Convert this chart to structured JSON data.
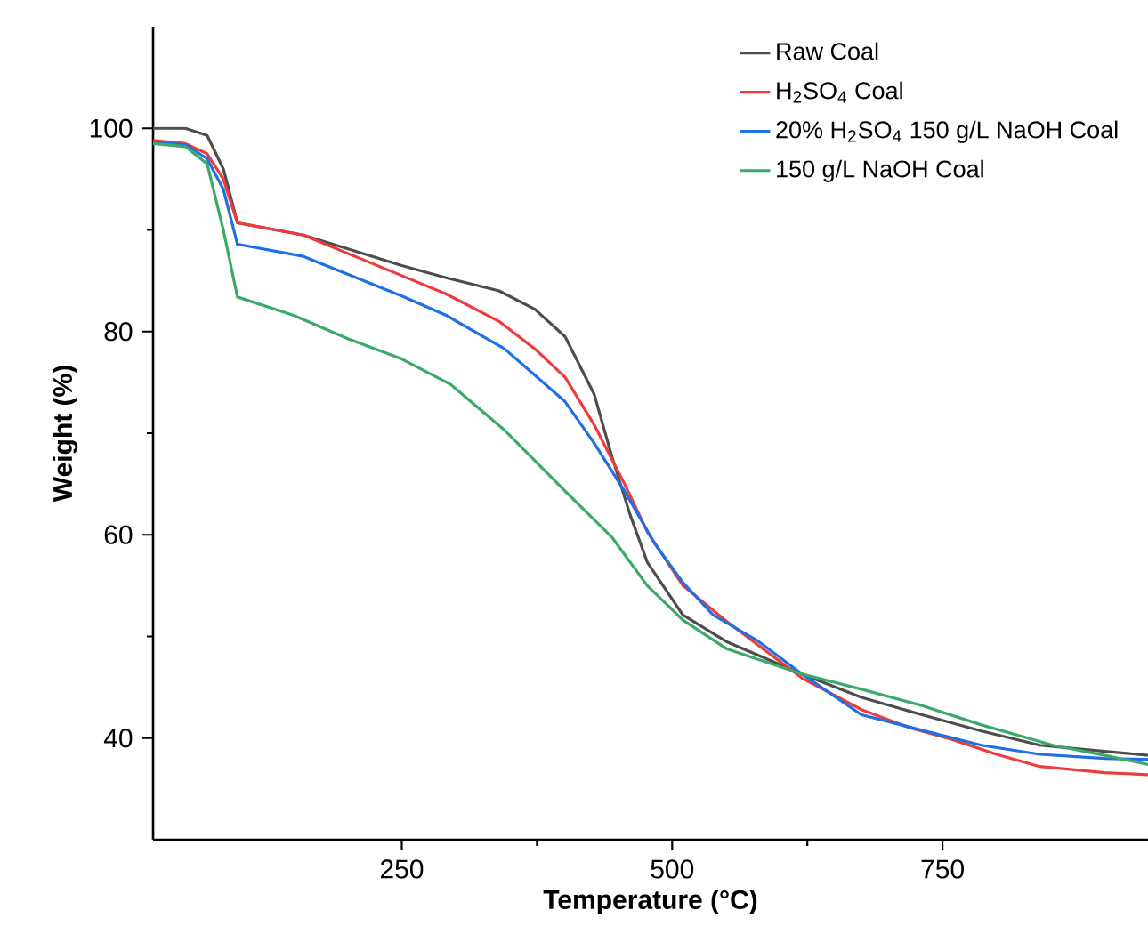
{
  "chart_data": {
    "type": "line",
    "xlabel": "Temperature (°C)",
    "ylabel": "Weight (%)",
    "xlim": [
      20,
      940
    ],
    "ylim": [
      30,
      110
    ],
    "xticks": [
      250,
      500,
      750
    ],
    "yticks": [
      40,
      60,
      80,
      100
    ],
    "grid": false,
    "legend": "top right",
    "marker": "none",
    "line_style": "solid",
    "series": [
      {
        "name": "Raw Coal",
        "color": "#4d4d4d",
        "x": [
          20,
          50,
          70,
          85,
          98,
          159,
          250,
          291,
          340,
          373,
          401,
          428,
          444,
          461,
          477,
          510,
          550,
          620,
          675,
          731,
          786,
          840,
          900,
          940
        ],
        "values": [
          100,
          100,
          99.3,
          96,
          90.7,
          89.5,
          86.5,
          85.3,
          84,
          82.2,
          79.5,
          73.8,
          67.8,
          62,
          57.3,
          52.1,
          49.5,
          46.3,
          44,
          42.3,
          40.7,
          39.3,
          38.7,
          38.3
        ]
      },
      {
        "name": "H$_{2}$SO$_{4}$ Coal",
        "color": "#ef3b3b",
        "x": [
          20,
          50,
          70,
          85,
          98,
          159,
          250,
          291,
          340,
          373,
          401,
          428,
          456,
          477,
          510,
          550,
          620,
          675,
          720,
          758,
          800,
          840,
          900,
          940
        ],
        "values": [
          98.8,
          98.5,
          97.5,
          95,
          90.7,
          89.5,
          85.5,
          83.7,
          81,
          78.3,
          75.5,
          70.8,
          65,
          60.3,
          55,
          51.5,
          45.9,
          42.8,
          41,
          39.9,
          38.4,
          37.2,
          36.6,
          36.4
        ]
      },
      {
        "name": "20% H$_{2}$SO$_{4}$ 150 g/L NaOH Coal",
        "color": "#1f6fe5",
        "x": [
          20,
          50,
          70,
          85,
          98,
          159,
          250,
          291,
          345,
          401,
          428,
          456,
          484,
          510,
          538,
          580,
          620,
          675,
          730,
          786,
          840,
          900,
          940
        ],
        "values": [
          98.6,
          98.4,
          97,
          94,
          88.6,
          87.4,
          83.5,
          81.6,
          78.3,
          73.1,
          69,
          64.3,
          59.1,
          55.3,
          52.1,
          49.5,
          46.3,
          42.3,
          40.8,
          39.3,
          38.4,
          38,
          37.9
        ]
      },
      {
        "name": "150 g/L NaOH Coal",
        "color": "#3aaa66",
        "x": [
          20,
          50,
          70,
          85,
          98,
          150,
          200,
          250,
          295,
          345,
          401,
          444,
          477,
          510,
          550,
          620,
          675,
          731,
          786,
          852,
          900,
          940
        ],
        "values": [
          98.5,
          98.2,
          96.5,
          90,
          83.4,
          81.6,
          79.3,
          77.3,
          74.8,
          70.3,
          64.3,
          59.8,
          55,
          51.6,
          48.8,
          46.3,
          44.8,
          43.2,
          41.3,
          39.3,
          38.3,
          37.4
        ]
      }
    ]
  }
}
